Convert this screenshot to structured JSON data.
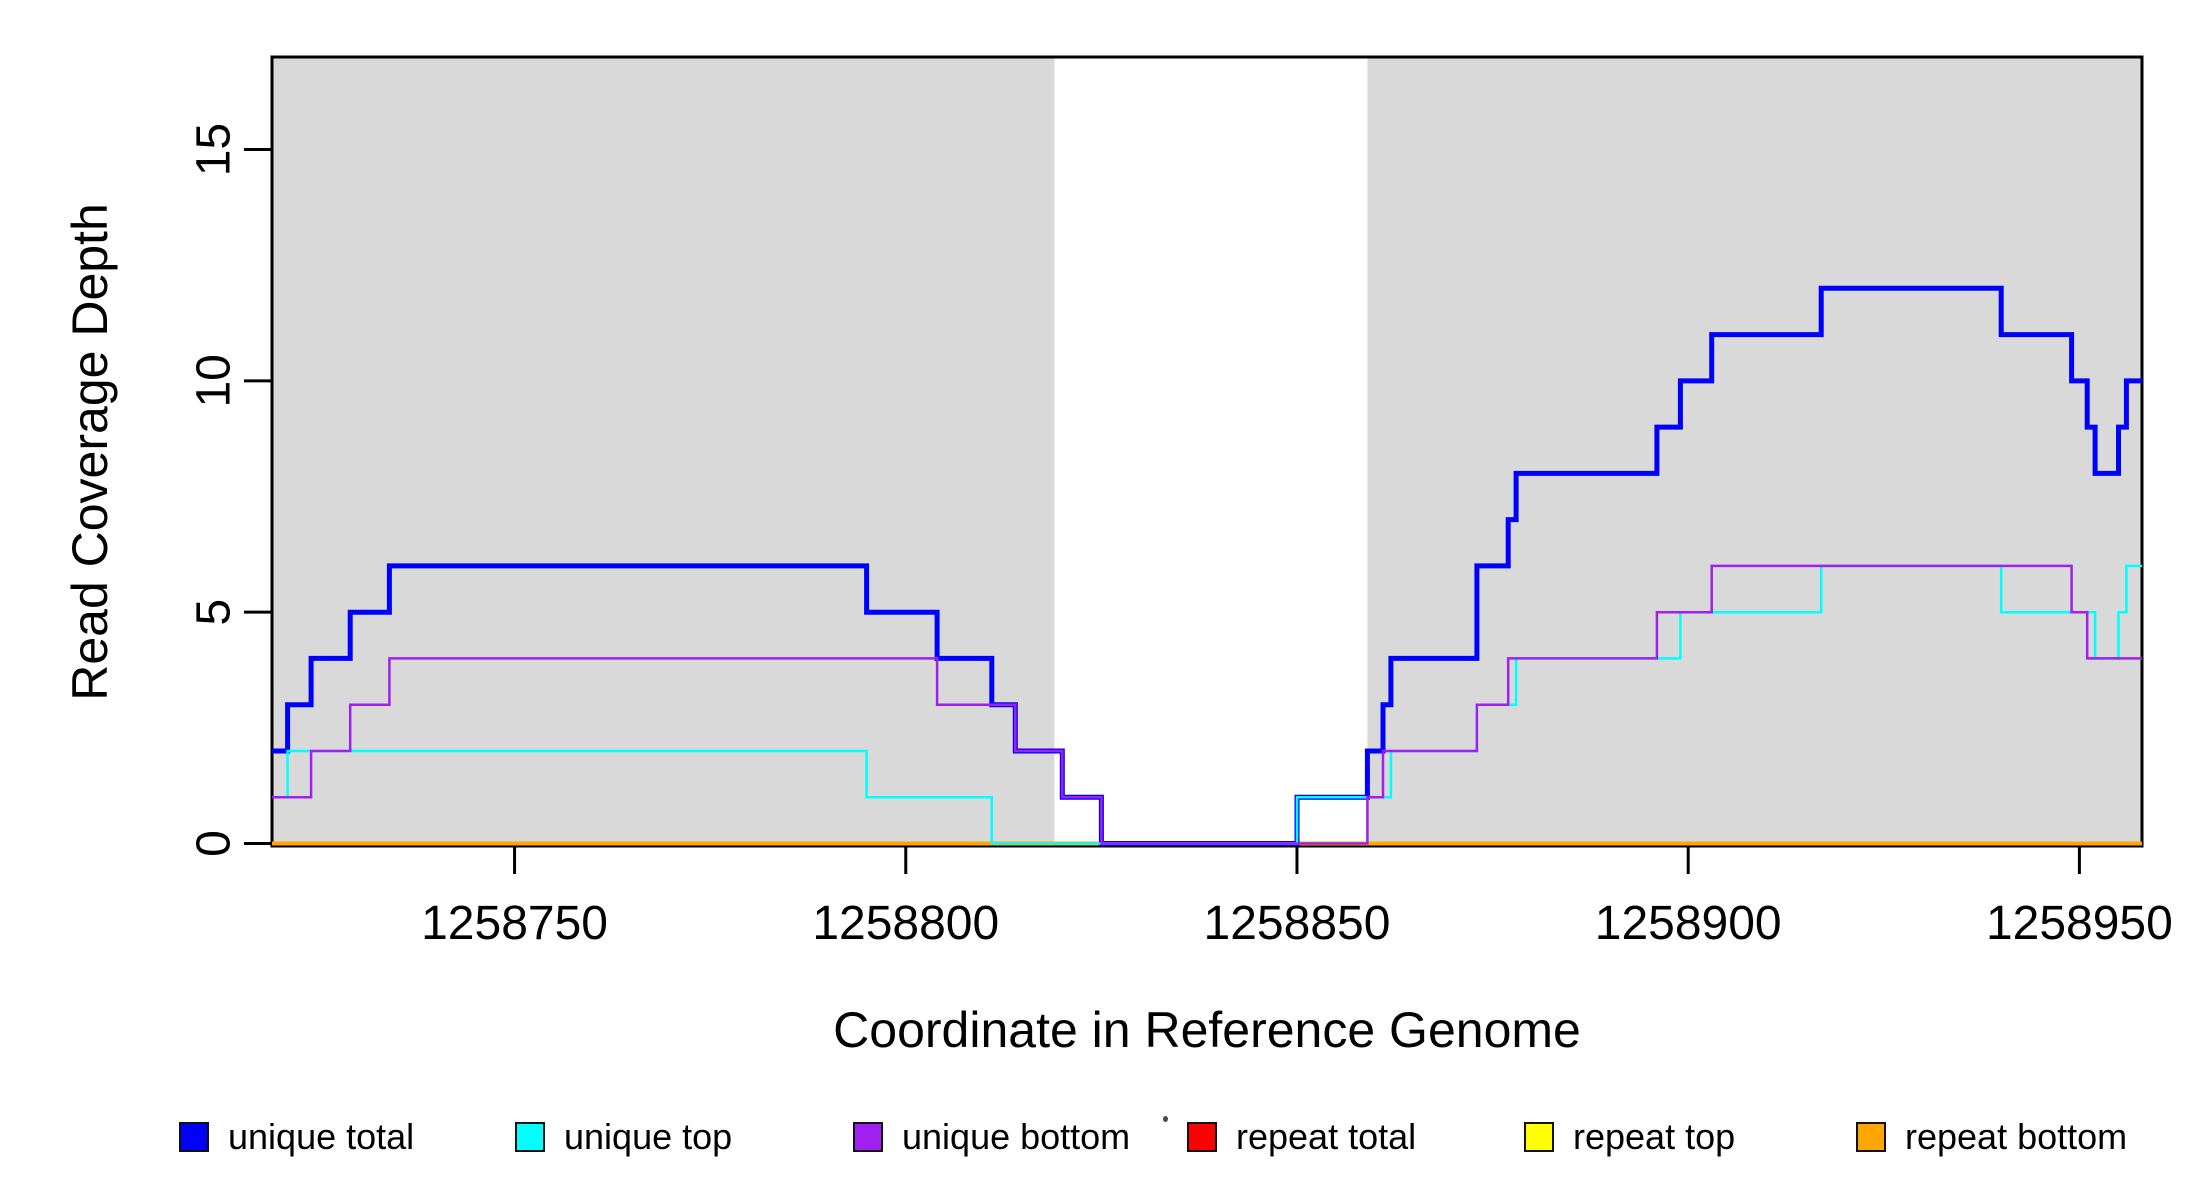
{
  "figure": {
    "x_axis_title": "Coordinate in Reference Genome",
    "y_axis_title": "Read Coverage Depth",
    "background_color": "#FFFFFF",
    "plot_box_color": "#000000"
  },
  "legend": {
    "position": "bottom",
    "items": [
      {
        "label": "unique total",
        "color": "#0000FF"
      },
      {
        "label": "unique top",
        "color": "#00FFFF"
      },
      {
        "label": "unique bottom",
        "color": "#A020F0"
      },
      {
        "label": "repeat total",
        "color": "#FF0000"
      },
      {
        "label": "repeat top",
        "color": "#FFFF00"
      },
      {
        "label": "repeat bottom",
        "color": "#FFA500"
      }
    ]
  },
  "axis_tick_labels": {
    "x": [
      "1258750",
      "1258800",
      "1258850",
      "1258900",
      "1258950"
    ],
    "y": [
      "0",
      "5",
      "10",
      "15"
    ]
  },
  "chart_data": {
    "type": "line",
    "step": true,
    "title": "",
    "xlabel": "Coordinate in Reference Genome",
    "ylabel": "Read Coverage Depth",
    "xlim": [
      1258719,
      1258958
    ],
    "ylim": [
      0,
      17
    ],
    "xticks": [
      1258750,
      1258800,
      1258850,
      1258900,
      1258950
    ],
    "yticks": [
      0,
      5,
      10,
      15
    ],
    "grid": false,
    "legend_position": "bottom",
    "shaded_regions": {
      "color": "#D9D9D9",
      "note": "gray mappability bands behind the curves",
      "ranges": [
        [
          1258719,
          1258819
        ],
        [
          1258859,
          1258958
        ]
      ]
    },
    "series_draw_order": [
      "repeat total",
      "repeat top",
      "repeat bottom",
      "unique total",
      "unique top",
      "unique bottom"
    ],
    "series": [
      {
        "name": "repeat total",
        "color": "#FF0000",
        "lwd": 2.5,
        "steps": [
          [
            1258719,
            0
          ]
        ]
      },
      {
        "name": "repeat top",
        "color": "#FFFF00",
        "lwd": 2.5,
        "steps": [
          [
            1258719,
            0
          ]
        ]
      },
      {
        "name": "repeat bottom",
        "color": "#FFA500",
        "lwd": 4,
        "steps": [
          [
            1258719,
            0
          ]
        ]
      },
      {
        "name": "unique total",
        "color": "#0000FF",
        "lwd": 5,
        "steps": [
          [
            1258719,
            2
          ],
          [
            1258721,
            3
          ],
          [
            1258724,
            4
          ],
          [
            1258729,
            5
          ],
          [
            1258734,
            6
          ],
          [
            1258795,
            5
          ],
          [
            1258804,
            4
          ],
          [
            1258811,
            3
          ],
          [
            1258814,
            2
          ],
          [
            1258820,
            1
          ],
          [
            1258825,
            0
          ],
          [
            1258850,
            1
          ],
          [
            1258859,
            2
          ],
          [
            1258861,
            3
          ],
          [
            1258862,
            4
          ],
          [
            1258873,
            6
          ],
          [
            1258877,
            7
          ],
          [
            1258878,
            8
          ],
          [
            1258896,
            9
          ],
          [
            1258899,
            10
          ],
          [
            1258903,
            11
          ],
          [
            1258917,
            12
          ],
          [
            1258940,
            11
          ],
          [
            1258949,
            10
          ],
          [
            1258951,
            9
          ],
          [
            1258952,
            8
          ],
          [
            1258955,
            9
          ],
          [
            1258956,
            10
          ]
        ]
      },
      {
        "name": "unique top",
        "color": "#00FFFF",
        "lwd": 2.5,
        "steps": [
          [
            1258719,
            1
          ],
          [
            1258721,
            2
          ],
          [
            1258795,
            1
          ],
          [
            1258811,
            0
          ],
          [
            1258850,
            1
          ],
          [
            1258862,
            2
          ],
          [
            1258873,
            3
          ],
          [
            1258878,
            4
          ],
          [
            1258899,
            5
          ],
          [
            1258917,
            6
          ],
          [
            1258940,
            5
          ],
          [
            1258952,
            4
          ],
          [
            1258955,
            5
          ],
          [
            1258956,
            6
          ]
        ]
      },
      {
        "name": "unique bottom",
        "color": "#A020F0",
        "lwd": 2.5,
        "steps": [
          [
            1258719,
            1
          ],
          [
            1258724,
            2
          ],
          [
            1258729,
            3
          ],
          [
            1258734,
            4
          ],
          [
            1258804,
            3
          ],
          [
            1258814,
            2
          ],
          [
            1258820,
            1
          ],
          [
            1258825,
            0
          ],
          [
            1258859,
            1
          ],
          [
            1258861,
            2
          ],
          [
            1258873,
            3
          ],
          [
            1258877,
            4
          ],
          [
            1258896,
            5
          ],
          [
            1258903,
            6
          ],
          [
            1258949,
            5
          ],
          [
            1258951,
            4
          ]
        ]
      }
    ]
  }
}
